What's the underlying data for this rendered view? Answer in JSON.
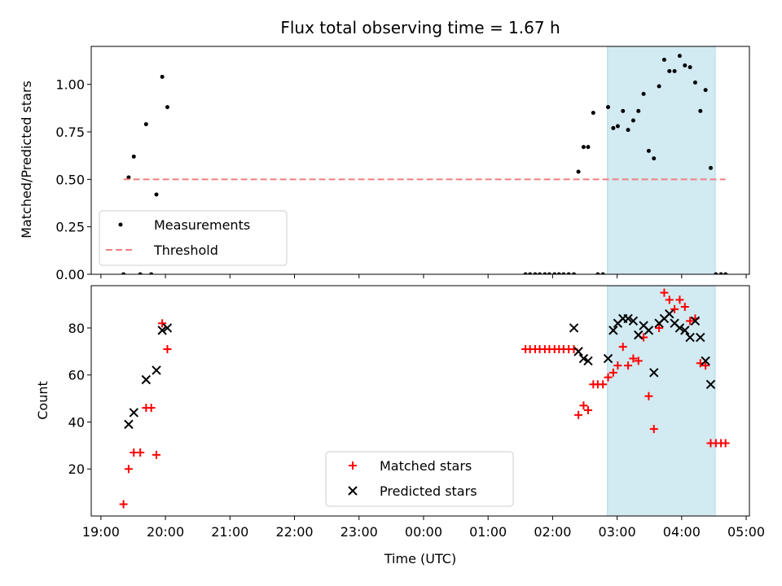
{
  "title": "Flux total observing time = 1.67 h",
  "colors": {
    "measurement": "#000000",
    "threshold": "#f08080",
    "matched": "#ff0000",
    "predicted": "#000000",
    "shade": "#add8e6"
  },
  "chart_data": [
    {
      "type": "scatter",
      "ylabel": "Matched/Predicted stars",
      "xlim": [
        -0.15,
        10.05
      ],
      "ylim": [
        0.0,
        1.2
      ],
      "x_unit": "hours since 19:00 UTC",
      "yticks": [
        0.0,
        0.25,
        0.5,
        0.75,
        1.0
      ],
      "ytick_labels": [
        "0.00",
        "0.25",
        "0.50",
        "0.75",
        "1.00"
      ],
      "shaded_x": [
        7.85,
        9.52
      ],
      "series": [
        {
          "name": "Measurements",
          "x": [
            0.35,
            0.43,
            0.51,
            0.61,
            0.7,
            0.78,
            0.86,
            0.95,
            1.03,
            6.58,
            6.65,
            6.73,
            6.8,
            6.88,
            6.95,
            7.03,
            7.1,
            7.17,
            7.25,
            7.33,
            7.4,
            7.48,
            7.55,
            7.63,
            7.7,
            7.78,
            7.86,
            7.94,
            8.01,
            8.09,
            8.17,
            8.25,
            8.33,
            8.41,
            8.49,
            8.57,
            8.65,
            8.73,
            8.81,
            8.89,
            8.97,
            9.05,
            9.13,
            9.21,
            9.29,
            9.37,
            9.45,
            9.53,
            9.61,
            9.68
          ],
          "y": [
            0.0,
            0.51,
            0.62,
            0.0,
            0.79,
            0.0,
            0.42,
            1.04,
            0.88,
            0.0,
            0.0,
            0.0,
            0.0,
            0.0,
            0.0,
            0.0,
            0.0,
            0.0,
            0.0,
            0.0,
            0.54,
            0.67,
            0.67,
            0.85,
            0.0,
            0.0,
            0.88,
            0.77,
            0.78,
            0.86,
            0.76,
            0.81,
            0.86,
            0.95,
            0.65,
            0.61,
            0.99,
            1.13,
            1.07,
            1.07,
            1.15,
            1.1,
            1.09,
            1.01,
            0.86,
            0.97,
            0.56,
            0.0,
            0.0,
            0.0
          ]
        },
        {
          "name": "Threshold",
          "style": "dashed",
          "x": [
            0.35,
            9.68
          ],
          "y": [
            0.5,
            0.5
          ]
        }
      ],
      "legend": "lower-left"
    },
    {
      "type": "scatter",
      "ylabel": "Count",
      "xlabel": "Time (UTC)",
      "xlim": [
        -0.15,
        10.05
      ],
      "ylim": [
        0,
        98
      ],
      "x_unit": "hours since 19:00 UTC",
      "yticks": [
        20,
        40,
        60,
        80
      ],
      "ytick_labels": [
        "20",
        "40",
        "60",
        "80"
      ],
      "xticks": [
        0,
        1,
        2,
        3,
        4,
        5,
        6,
        7,
        8,
        9,
        10
      ],
      "xtick_labels": [
        "19:00",
        "20:00",
        "21:00",
        "22:00",
        "23:00",
        "00:00",
        "01:00",
        "02:00",
        "03:00",
        "04:00",
        "05:00"
      ],
      "shaded_x": [
        7.85,
        9.52
      ],
      "series": [
        {
          "name": "Matched stars",
          "marker": "plus",
          "x": [
            0.35,
            0.43,
            0.51,
            0.61,
            0.7,
            0.78,
            0.86,
            0.95,
            1.03,
            6.58,
            6.65,
            6.73,
            6.8,
            6.88,
            6.95,
            7.03,
            7.1,
            7.17,
            7.25,
            7.33,
            7.4,
            7.48,
            7.55,
            7.63,
            7.7,
            7.78,
            7.86,
            7.94,
            8.01,
            8.09,
            8.17,
            8.25,
            8.33,
            8.41,
            8.49,
            8.57,
            8.65,
            8.73,
            8.81,
            8.89,
            8.97,
            9.05,
            9.13,
            9.21,
            9.29,
            9.37,
            9.45,
            9.53,
            9.61,
            9.68
          ],
          "y": [
            5,
            20,
            27,
            27,
            46,
            46,
            26,
            82,
            71,
            71,
            71,
            71,
            71,
            71,
            71,
            71,
            71,
            71,
            71,
            71,
            43,
            47,
            45,
            56,
            56,
            56,
            59,
            61,
            64,
            72,
            64,
            67,
            66,
            76,
            51,
            37,
            80,
            95,
            92,
            88,
            92,
            89,
            83,
            84,
            65,
            64,
            31,
            31,
            31,
            31
          ]
        },
        {
          "name": "Predicted stars",
          "marker": "x",
          "x": [
            0.43,
            0.51,
            0.7,
            0.86,
            0.95,
            1.03,
            7.33,
            7.4,
            7.48,
            7.55,
            7.86,
            7.94,
            8.01,
            8.09,
            8.17,
            8.25,
            8.33,
            8.41,
            8.49,
            8.57,
            8.65,
            8.73,
            8.81,
            8.89,
            8.97,
            9.05,
            9.13,
            9.21,
            9.29,
            9.37,
            9.45
          ],
          "y": [
            39,
            44,
            58,
            62,
            79,
            80,
            80,
            70,
            67,
            66,
            67,
            79,
            82,
            84,
            84,
            83,
            77,
            81,
            79,
            61,
            82,
            84,
            86,
            82,
            80,
            79,
            76,
            83,
            76,
            66,
            56
          ]
        }
      ],
      "legend": "lower-center"
    }
  ]
}
